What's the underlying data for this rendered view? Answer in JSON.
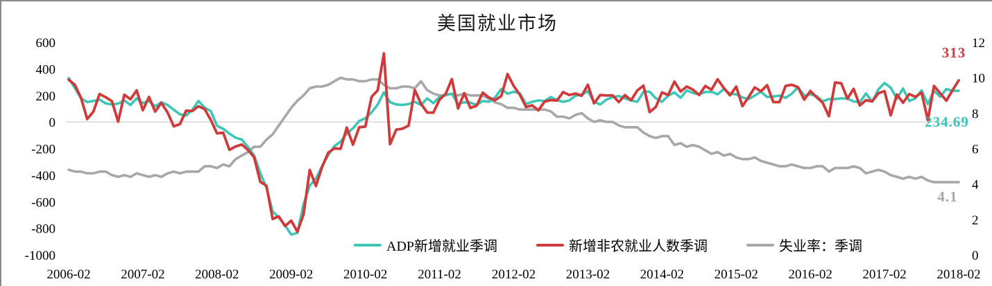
{
  "chart": {
    "title": "美国就业市场",
    "annotations": {
      "nfp": "313",
      "adp": "234.69",
      "unemployment": "4.1"
    }
  },
  "chart_data": {
    "type": "line",
    "title": "美国就业市场",
    "grid": "horizontal-zero-line-only",
    "legend_position": "bottom-inside",
    "colors": {
      "gridline": "#d6d6d6",
      "axis_text": "#000000",
      "border": "#898989"
    },
    "x_tick_labels": [
      "2006-02",
      "2007-02",
      "2008-02",
      "2009-02",
      "2010-02",
      "2011-02",
      "2012-02",
      "2013-02",
      "2014-02",
      "2015-02",
      "2016-02",
      "2017-02",
      "2018-02"
    ],
    "x_frequency": "monthly",
    "left_axis": {
      "range": [
        -1000,
        600
      ],
      "ticks": [
        600,
        400,
        200,
        0,
        -200,
        -400,
        -600,
        -800,
        -1000
      ]
    },
    "right_axis": {
      "range": [
        0,
        12
      ],
      "ticks": [
        12,
        10,
        8,
        6,
        4,
        2,
        0
      ]
    },
    "series": [
      {
        "name": "ADP新增就业季调",
        "axis": "left",
        "color": "#3cc6b6",
        "last_label": "234.69",
        "values": [
          330,
          255,
          178,
          150,
          158,
          168,
          140,
          132,
          138,
          162,
          128,
          178,
          142,
          158,
          118,
          148,
          128,
          92,
          58,
          48,
          92,
          158,
          108,
          82,
          -28,
          -52,
          -88,
          -118,
          -132,
          -188,
          -252,
          -385,
          -495,
          -675,
          -718,
          -778,
          -848,
          -835,
          -618,
          -478,
          -428,
          -332,
          -248,
          -182,
          -148,
          -88,
          -48,
          8,
          28,
          72,
          132,
          222,
          148,
          132,
          128,
          135,
          152,
          128,
          178,
          142,
          188,
          205,
          212,
          135,
          148,
          145,
          128,
          158,
          152,
          185,
          248,
          212,
          228,
          215,
          135,
          152,
          162,
          158,
          188,
          165,
          152,
          162,
          198,
          205,
          232,
          152,
          132,
          168,
          188,
          195,
          178,
          162,
          152,
          228,
          228,
          178,
          152,
          198,
          222,
          182,
          238,
          218,
          208,
          225,
          228,
          208,
          248,
          212,
          208,
          185,
          172,
          198,
          228,
          188,
          192,
          198,
          182,
          212,
          262,
          198,
          208,
          195,
          155,
          172,
          172,
          178,
          175,
          155,
          147,
          215,
          153,
          245,
          293,
          258,
          175,
          252,
          158,
          178,
          238,
          135,
          235,
          190,
          248,
          234,
          234.69
        ]
      },
      {
        "name": "新增非农就业人数季调",
        "axis": "left",
        "color": "#cf3a3a",
        "last_label": "313",
        "values": [
          318,
          280,
          181,
          22,
          78,
          210,
          186,
          156,
          2,
          205,
          171,
          238,
          88,
          188,
          78,
          144,
          71,
          -33,
          -16,
          85,
          82,
          118,
          97,
          15,
          -86,
          -80,
          -210,
          -185,
          -170,
          -210,
          -265,
          -450,
          -480,
          -730,
          -710,
          -783,
          -743,
          -826,
          -695,
          -361,
          -482,
          -339,
          -231,
          -199,
          -202,
          -42,
          -171,
          -40,
          -35,
          189,
          239,
          516,
          -167,
          -58,
          -51,
          -27,
          241,
          137,
          71,
          70,
          168,
          212,
          322,
          102,
          217,
          106,
          122,
          221,
          183,
          164,
          196,
          360,
          271,
          205,
          112,
          125,
          87,
          153,
          165,
          161,
          225,
          203,
          214,
          197,
          280,
          141,
          203,
          199,
          201,
          149,
          202,
          164,
          237,
          274,
          74,
          113,
          222,
          203,
          304,
          229,
          267,
          243,
          203,
          271,
          243,
          321,
          256,
          201,
          266,
          119,
          187,
          260,
          231,
          277,
          150,
          149,
          271,
          280,
          262,
          168,
          233,
          186,
          144,
          43,
          297,
          291,
          176,
          249,
          124,
          164,
          155,
          216,
          232,
          50,
          207,
          145,
          210,
          189,
          221,
          14,
          271,
          216,
          160,
          239,
          313
        ]
      },
      {
        "name": "失业率：季调",
        "axis": "right",
        "color": "#a7a7a7",
        "last_label": "4.1",
        "values": [
          4.8,
          4.7,
          4.7,
          4.6,
          4.6,
          4.7,
          4.7,
          4.5,
          4.4,
          4.5,
          4.4,
          4.6,
          4.5,
          4.4,
          4.5,
          4.4,
          4.6,
          4.7,
          4.6,
          4.7,
          4.7,
          4.7,
          5.0,
          5.0,
          4.9,
          5.1,
          5.0,
          5.4,
          5.6,
          5.8,
          6.1,
          6.1,
          6.5,
          6.8,
          7.3,
          7.8,
          8.3,
          8.7,
          9.0,
          9.4,
          9.5,
          9.5,
          9.6,
          9.8,
          10.0,
          9.9,
          9.9,
          9.8,
          9.8,
          9.9,
          9.9,
          9.6,
          9.4,
          9.4,
          9.5,
          9.5,
          9.4,
          9.8,
          9.3,
          9.1,
          9.0,
          9.0,
          9.1,
          9.0,
          9.1,
          9.0,
          9.0,
          9.0,
          8.8,
          8.6,
          8.5,
          8.3,
          8.3,
          8.2,
          8.2,
          8.2,
          8.2,
          8.2,
          8.1,
          7.8,
          7.8,
          7.7,
          7.9,
          8.0,
          7.7,
          7.5,
          7.6,
          7.5,
          7.5,
          7.3,
          7.2,
          7.2,
          7.2,
          6.9,
          6.7,
          6.6,
          6.7,
          6.7,
          6.2,
          6.3,
          6.1,
          6.2,
          6.1,
          5.9,
          5.7,
          5.8,
          5.6,
          5.7,
          5.5,
          5.4,
          5.4,
          5.5,
          5.3,
          5.2,
          5.1,
          5.0,
          5.0,
          5.1,
          5.0,
          4.9,
          4.9,
          5.0,
          5.0,
          4.7,
          4.9,
          4.9,
          4.9,
          5.0,
          4.9,
          4.6,
          4.7,
          4.8,
          4.7,
          4.5,
          4.4,
          4.3,
          4.4,
          4.3,
          4.4,
          4.2,
          4.1,
          4.1,
          4.1,
          4.1,
          4.1
        ]
      }
    ]
  }
}
